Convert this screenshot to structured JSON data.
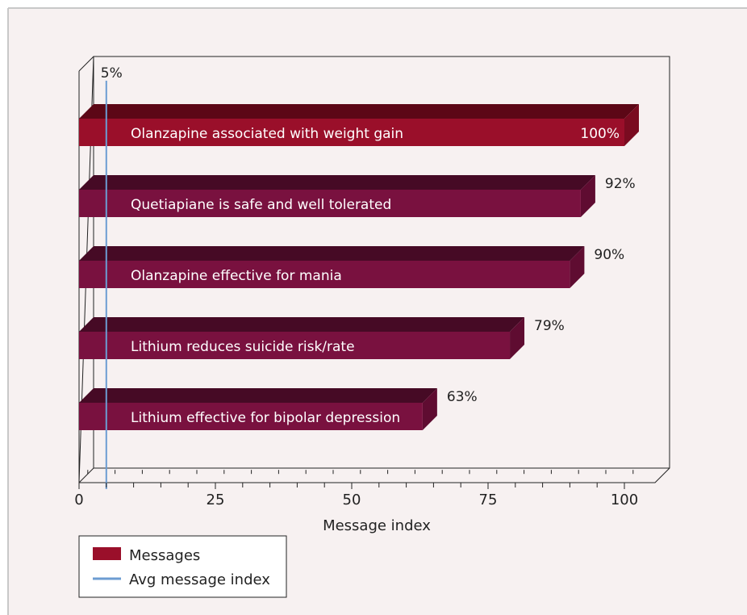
{
  "chart_data": {
    "type": "bar",
    "orientation": "horizontal",
    "categories": [
      "Olanzapine associated with weight gain",
      "Quetiapiane is safe and well tolerated",
      "Olanzapine effective for mania",
      "Lithium reduces suicide risk/rate",
      "Lithium effective for bipolar depression"
    ],
    "series": [
      {
        "name": "Messages",
        "values": [
          100,
          92,
          90,
          79,
          63
        ],
        "value_labels": [
          "100%",
          "92%",
          "90%",
          "79%",
          "63%"
        ]
      }
    ],
    "reference_line": {
      "name": "Avg message index",
      "value": 5,
      "label": "5%"
    },
    "xlabel": "Message index",
    "xlim": [
      0,
      105
    ],
    "xticks": [
      0,
      25,
      50,
      75,
      100
    ],
    "xtick_labels": [
      "0",
      "25",
      "50",
      "75",
      "100"
    ],
    "highlight_index": 0,
    "legend_position": "bottom-left",
    "grid": false
  },
  "colors": {
    "background": "#f7f1f1",
    "frame": "#a9a9a9",
    "highlight_bar": "#9a0f2a",
    "highlight_bar_top": "#5c0716",
    "bar": "#79113f",
    "bar_top": "#460a25",
    "bar_side": "#5f0c31",
    "ref_line": "#6c9cd2",
    "title_bar": "#c0154e"
  }
}
